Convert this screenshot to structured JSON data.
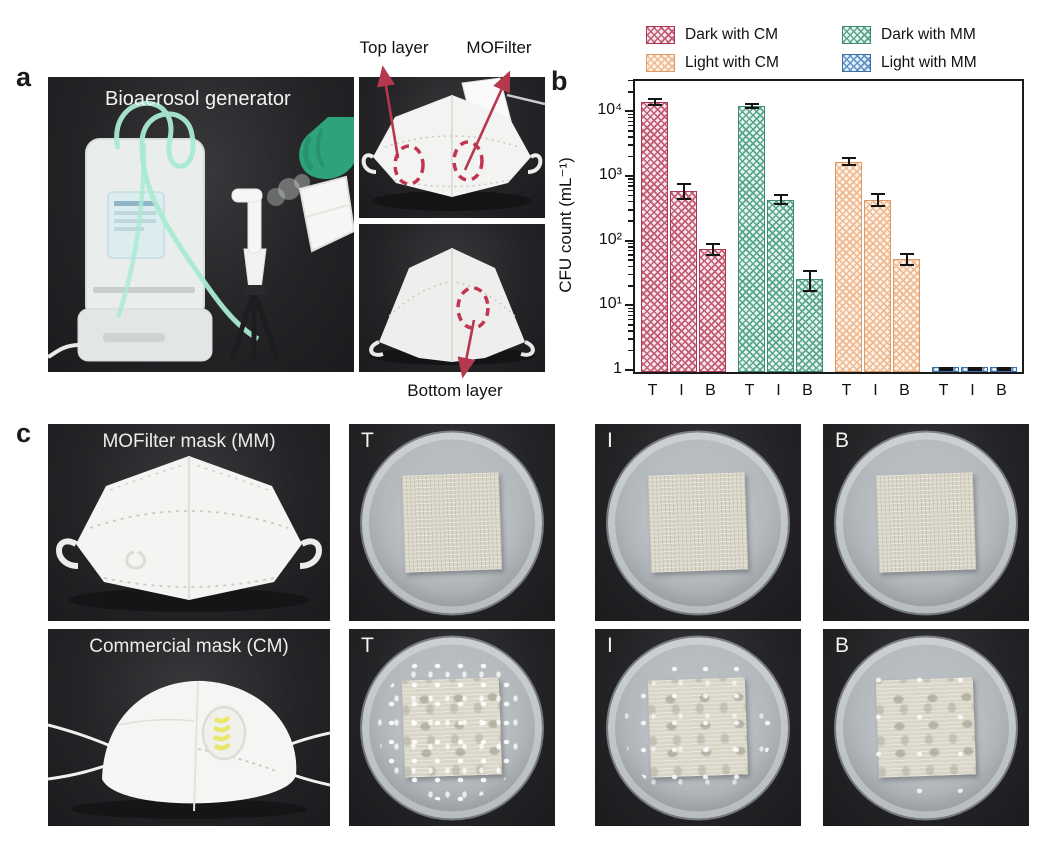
{
  "panels": {
    "a_label": "a",
    "b_label": "b",
    "c_label": "c"
  },
  "panel_a": {
    "generator_label": "Bioaerosol generator",
    "annotations": {
      "top_layer": "Top layer",
      "mofilter": "MOFilter",
      "bottom_layer": "Bottom layer"
    }
  },
  "chart_data": {
    "type": "bar",
    "title": "",
    "xlabel": "",
    "ylabel": "CFU count (mL⁻¹)",
    "yscale": "log",
    "ylim": [
      1,
      31623
    ],
    "grid": false,
    "legend_position": "top",
    "categories": [
      "T",
      "I",
      "B"
    ],
    "ytick_values": [
      1,
      10,
      100,
      1000,
      10000
    ],
    "ytick_labels": [
      "1",
      "10¹",
      "10²",
      "10³",
      "10⁴"
    ],
    "series": [
      {
        "name": "Dark with CM",
        "color": "#a83a55",
        "values": [
          15000,
          620,
          80
        ],
        "err_lo": [
          13000,
          450,
          62
        ],
        "err_hi": [
          17000,
          850,
          100
        ]
      },
      {
        "name": "Dark with MM",
        "color": "#3f8a71",
        "values": [
          13000,
          460,
          27
        ],
        "err_lo": [
          11500,
          380,
          17
        ],
        "err_hi": [
          14500,
          570,
          38
        ]
      },
      {
        "name": "Light with CM",
        "color": "#dd9a67",
        "values": [
          1800,
          460,
          55
        ],
        "err_lo": [
          1550,
          360,
          43
        ],
        "err_hi": [
          2100,
          580,
          70
        ]
      },
      {
        "name": "Light with MM",
        "color": "#3d6ea9",
        "values": [
          1.1,
          1.1,
          1.1
        ],
        "err_lo": [
          1.04,
          1.04,
          1.04
        ],
        "err_hi": [
          1.2,
          1.2,
          1.2
        ]
      }
    ]
  },
  "panel_c": {
    "mask_photos": [
      {
        "label": "MOFilter mask (MM)"
      },
      {
        "label": "Commercial mask (CM)"
      }
    ],
    "rows": [
      {
        "dishes": [
          {
            "label": "T",
            "density": "none"
          },
          {
            "label": "I",
            "density": "none"
          },
          {
            "label": "B",
            "density": "none"
          }
        ]
      },
      {
        "dishes": [
          {
            "label": "T",
            "density": "dense"
          },
          {
            "label": "I",
            "density": "medium"
          },
          {
            "label": "B",
            "density": "sparse"
          }
        ]
      }
    ]
  },
  "colors": {
    "annotation_red": "#b5384e",
    "dashed_circle_red": "#c23551",
    "axis_black": "#1a1a1a",
    "photo_background": "#232326",
    "glove_green": "#2ea37a",
    "tube_green": "#a9ead2",
    "valve_yellow": "#e8e86a"
  }
}
